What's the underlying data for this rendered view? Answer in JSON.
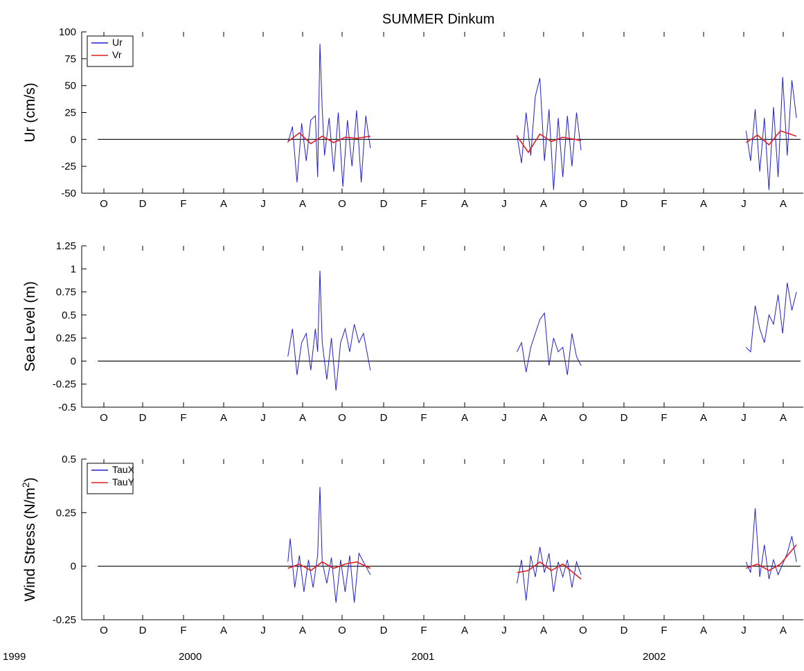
{
  "figure_title": "SUMMER Dinkum",
  "year_labels": [
    "1999",
    "2000",
    "2001",
    "2002"
  ],
  "month_ticks": [
    "O",
    "D",
    "F",
    "A",
    "J",
    "A",
    "O",
    "D",
    "F",
    "A",
    "J",
    "A",
    "O",
    "D",
    "F",
    "A",
    "J",
    "A"
  ],
  "colors": {
    "series_1": "#1f1fd0",
    "series_2": "#e01f1f",
    "zero_line": "#000000",
    "axes": "#000000"
  },
  "chart_data": [
    {
      "type": "line",
      "ylabel": "Ur (cm/s)",
      "ylim": [
        -50,
        100
      ],
      "yticks": [
        "-50",
        "-25",
        "0",
        "25",
        "50",
        "75",
        "100"
      ],
      "xlim": [
        1999.55,
        2002.7
      ],
      "legend": {
        "placement": "top-left",
        "entries": [
          "Ur",
          "Vr"
        ]
      },
      "grid": false,
      "zero_line": 0,
      "series": [
        {
          "name": "Ur",
          "segments": [
            {
              "x": [
                2000.45,
                2000.47,
                2000.49,
                2000.51,
                2000.53,
                2000.55,
                2000.57,
                2000.58,
                2000.59,
                2000.6,
                2000.61,
                2000.63,
                2000.65,
                2000.67,
                2000.69,
                2000.71,
                2000.73,
                2000.75,
                2000.77,
                2000.79,
                2000.81
              ],
              "y": [
                -3,
                12,
                -40,
                15,
                -20,
                18,
                22,
                -35,
                89,
                28,
                -15,
                20,
                -30,
                25,
                -44,
                18,
                -25,
                27,
                -40,
                22,
                -8
              ]
            },
            {
              "x": [
                2001.45,
                2001.47,
                2001.49,
                2001.51,
                2001.53,
                2001.55,
                2001.57,
                2001.59,
                2001.61,
                2001.63,
                2001.65,
                2001.67,
                2001.69,
                2001.71,
                2001.73
              ],
              "y": [
                4,
                -22,
                25,
                -15,
                40,
                57,
                -20,
                28,
                -47,
                20,
                -35,
                22,
                -25,
                25,
                -10
              ]
            },
            {
              "x": [
                2002.45,
                2002.47,
                2002.49,
                2002.51,
                2002.53,
                2002.55,
                2002.57,
                2002.59,
                2002.61,
                2002.63,
                2002.65,
                2002.67
              ],
              "y": [
                8,
                -20,
                28,
                -30,
                20,
                -47,
                30,
                -35,
                58,
                -15,
                55,
                20
              ]
            }
          ]
        },
        {
          "name": "Vr",
          "segments": [
            {
              "x": [
                2000.45,
                2000.5,
                2000.55,
                2000.6,
                2000.65,
                2000.7,
                2000.75,
                2000.81
              ],
              "y": [
                -2,
                6,
                -4,
                3,
                -3,
                2,
                1,
                3
              ]
            },
            {
              "x": [
                2001.45,
                2001.5,
                2001.55,
                2001.6,
                2001.65,
                2001.73
              ],
              "y": [
                3,
                -12,
                5,
                -2,
                2,
                -1
              ]
            },
            {
              "x": [
                2002.45,
                2002.5,
                2002.55,
                2002.6,
                2002.67
              ],
              "y": [
                -3,
                4,
                -5,
                8,
                3
              ]
            }
          ]
        }
      ]
    },
    {
      "type": "line",
      "ylabel": "Sea Level (m)",
      "ylim": [
        -0.5,
        1.25
      ],
      "yticks": [
        "-0.5",
        "-0.25",
        "0",
        "0.25",
        "0.5",
        "0.75",
        "1",
        "1.25"
      ],
      "xlim": [
        1999.55,
        2002.7
      ],
      "grid": false,
      "zero_line": 0,
      "series": [
        {
          "segments": [
            {
              "x": [
                2000.45,
                2000.47,
                2000.49,
                2000.51,
                2000.53,
                2000.55,
                2000.57,
                2000.58,
                2000.59,
                2000.6,
                2000.62,
                2000.64,
                2000.66,
                2000.68,
                2000.7,
                2000.72,
                2000.74,
                2000.76,
                2000.78,
                2000.81
              ],
              "y": [
                0.05,
                0.35,
                -0.15,
                0.2,
                0.3,
                -0.1,
                0.35,
                0.1,
                0.98,
                0.2,
                -0.2,
                0.25,
                -0.32,
                0.2,
                0.35,
                0.1,
                0.4,
                0.2,
                0.3,
                -0.1
              ]
            },
            {
              "x": [
                2001.45,
                2001.47,
                2001.49,
                2001.51,
                2001.53,
                2001.55,
                2001.57,
                2001.59,
                2001.61,
                2001.63,
                2001.65,
                2001.67,
                2001.69,
                2001.71,
                2001.73
              ],
              "y": [
                0.1,
                0.2,
                -0.12,
                0.15,
                0.3,
                0.45,
                0.52,
                -0.05,
                0.25,
                0.1,
                0.15,
                -0.15,
                0.3,
                0.05,
                -0.05
              ]
            },
            {
              "x": [
                2002.45,
                2002.47,
                2002.49,
                2002.51,
                2002.53,
                2002.55,
                2002.57,
                2002.59,
                2002.61,
                2002.63,
                2002.65,
                2002.67
              ],
              "y": [
                0.15,
                0.1,
                0.6,
                0.35,
                0.2,
                0.5,
                0.4,
                0.72,
                0.3,
                0.85,
                0.55,
                0.75
              ]
            }
          ]
        }
      ]
    },
    {
      "type": "line",
      "ylabel": "Wind Stress (N/m²)",
      "ylim": [
        -0.25,
        0.5
      ],
      "yticks": [
        "-0.25",
        "0",
        "0.25",
        "0.5"
      ],
      "xlim": [
        1999.55,
        2002.7
      ],
      "legend": {
        "placement": "top-left",
        "entries": [
          "TauX",
          "TauY"
        ]
      },
      "grid": false,
      "zero_line": 0,
      "series": [
        {
          "name": "TauX",
          "segments": [
            {
              "x": [
                2000.45,
                2000.46,
                2000.48,
                2000.5,
                2000.52,
                2000.54,
                2000.56,
                2000.58,
                2000.59,
                2000.6,
                2000.62,
                2000.64,
                2000.66,
                2000.68,
                2000.7,
                2000.72,
                2000.74,
                2000.76,
                2000.78,
                2000.81
              ],
              "y": [
                0.02,
                0.13,
                -0.1,
                0.05,
                -0.12,
                0.03,
                -0.1,
                0.05,
                0.37,
                0.02,
                -0.08,
                0.04,
                -0.17,
                0.03,
                -0.12,
                0.05,
                -0.17,
                0.06,
                0.02,
                -0.04
              ]
            },
            {
              "x": [
                2001.45,
                2001.47,
                2001.49,
                2001.51,
                2001.53,
                2001.55,
                2001.57,
                2001.59,
                2001.61,
                2001.63,
                2001.65,
                2001.67,
                2001.69,
                2001.71,
                2001.73
              ],
              "y": [
                -0.08,
                0.03,
                -0.16,
                0.05,
                -0.05,
                0.09,
                -0.03,
                0.06,
                -0.12,
                0.02,
                -0.05,
                0.03,
                -0.1,
                0.02,
                -0.04
              ]
            },
            {
              "x": [
                2002.45,
                2002.47,
                2002.49,
                2002.51,
                2002.53,
                2002.55,
                2002.57,
                2002.59,
                2002.61,
                2002.63,
                2002.65,
                2002.67
              ],
              "y": [
                0.02,
                -0.03,
                0.27,
                -0.05,
                0.1,
                -0.06,
                0.03,
                -0.04,
                0.01,
                0.06,
                0.14,
                0.02
              ]
            }
          ]
        },
        {
          "name": "TauY",
          "segments": [
            {
              "x": [
                2000.45,
                2000.5,
                2000.55,
                2000.6,
                2000.65,
                2000.7,
                2000.75,
                2000.81
              ],
              "y": [
                -0.01,
                0.01,
                -0.02,
                0.02,
                -0.01,
                0.01,
                0.02,
                -0.01
              ]
            },
            {
              "x": [
                2001.45,
                2001.5,
                2001.55,
                2001.6,
                2001.65,
                2001.73
              ],
              "y": [
                -0.03,
                -0.02,
                0.02,
                -0.02,
                0.01,
                -0.06
              ]
            },
            {
              "x": [
                2002.45,
                2002.5,
                2002.55,
                2002.6,
                2002.67
              ],
              "y": [
                -0.01,
                0.01,
                -0.02,
                0.01,
                0.1
              ]
            }
          ]
        }
      ]
    }
  ]
}
